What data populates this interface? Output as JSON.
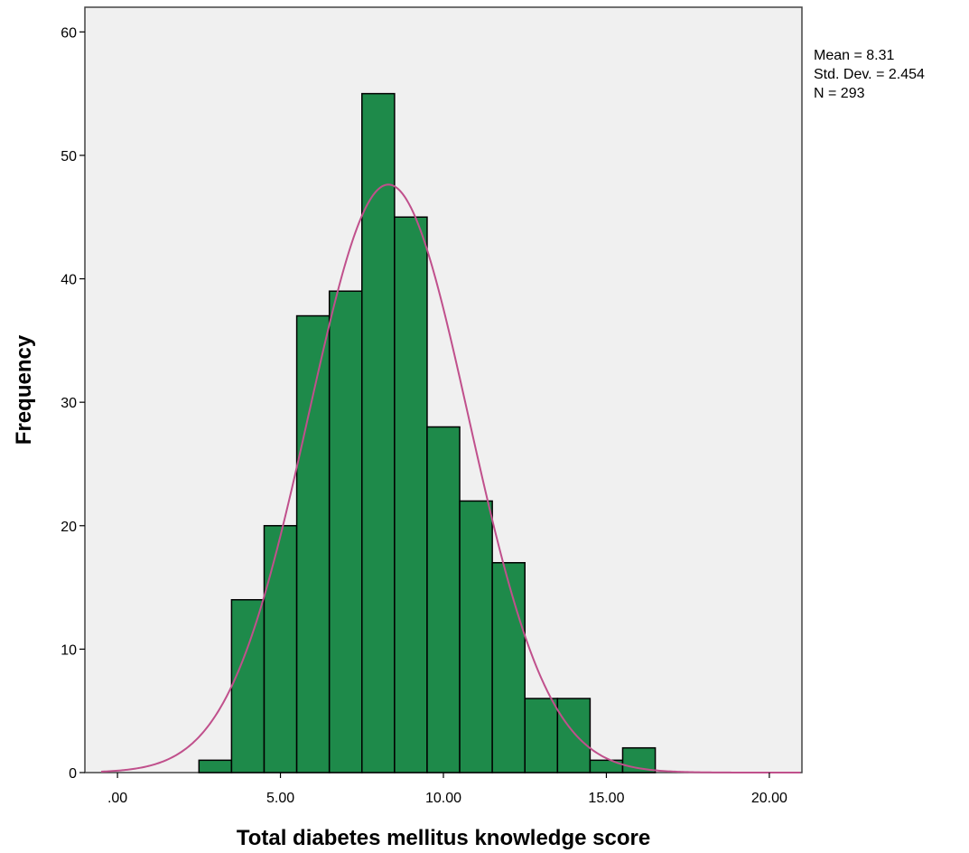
{
  "chart_data": {
    "type": "bar",
    "subtype": "histogram",
    "xlabel": "Total diabetes mellitus knowledge score",
    "ylabel": "Frequency",
    "xlim": [
      -1,
      21
    ],
    "ylim": [
      0,
      62
    ],
    "bin_width": 1,
    "bins": [
      {
        "start": 2.5,
        "end": 3.5,
        "count": 1
      },
      {
        "start": 3.5,
        "end": 4.5,
        "count": 14
      },
      {
        "start": 4.5,
        "end": 5.5,
        "count": 20
      },
      {
        "start": 5.5,
        "end": 6.5,
        "count": 37
      },
      {
        "start": 6.5,
        "end": 7.5,
        "count": 39
      },
      {
        "start": 7.5,
        "end": 8.5,
        "count": 55
      },
      {
        "start": 8.5,
        "end": 9.5,
        "count": 45
      },
      {
        "start": 9.5,
        "end": 10.5,
        "count": 28
      },
      {
        "start": 10.5,
        "end": 11.5,
        "count": 22
      },
      {
        "start": 11.5,
        "end": 12.5,
        "count": 17
      },
      {
        "start": 12.5,
        "end": 13.5,
        "count": 6
      },
      {
        "start": 13.5,
        "end": 14.5,
        "count": 6
      },
      {
        "start": 14.5,
        "end": 15.5,
        "count": 1
      },
      {
        "start": 15.5,
        "end": 16.5,
        "count": 2
      }
    ],
    "x_ticks": [
      {
        "value": 0,
        "label": ".00"
      },
      {
        "value": 5,
        "label": "5.00"
      },
      {
        "value": 10,
        "label": "10.00"
      },
      {
        "value": 15,
        "label": "15.00"
      },
      {
        "value": 20,
        "label": "20.00"
      }
    ],
    "y_ticks": [
      {
        "value": 0,
        "label": "0"
      },
      {
        "value": 10,
        "label": "10"
      },
      {
        "value": 20,
        "label": "20"
      },
      {
        "value": 30,
        "label": "30"
      },
      {
        "value": 40,
        "label": "40"
      },
      {
        "value": 50,
        "label": "50"
      },
      {
        "value": 60,
        "label": "60"
      }
    ],
    "normal_curve": {
      "mean": 8.31,
      "sd": 2.454,
      "n": 293
    },
    "stats_text": [
      "Mean = 8.31",
      "Std. Dev. = 2.454",
      "N = 293"
    ],
    "grid": false,
    "colors": {
      "bar_fill": "#1e8a4a",
      "bar_stroke": "#000000",
      "curve": "#c0508c",
      "plot_background": "#f0f0f0"
    }
  }
}
